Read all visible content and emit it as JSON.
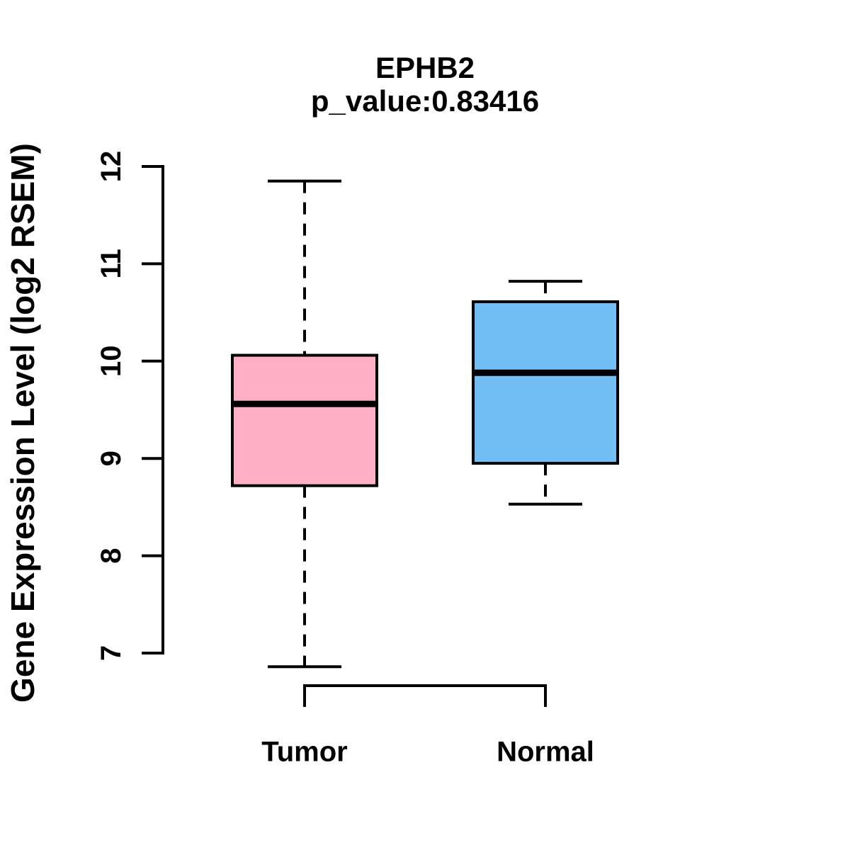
{
  "chart_data": {
    "type": "boxplot",
    "title": "EPHB2",
    "subtitle": "p_value:0.83416",
    "ylabel": "Gene Expression Level (log2 RSEM)",
    "xlabel": "",
    "categories": [
      "Tumor",
      "Normal"
    ],
    "yticks": [
      7,
      8,
      9,
      10,
      11,
      12
    ],
    "ylim": [
      6.5,
      12.3
    ],
    "grid": false,
    "legend": "none",
    "whisker_style": "dashed",
    "box_border_color": "#000000",
    "median_color": "#000000",
    "axis_color": "#000000",
    "series": [
      {
        "name": "Tumor",
        "color": "#FFB0C4",
        "min": 6.86,
        "q1": 8.72,
        "median": 9.56,
        "q3": 10.06,
        "max": 11.85
      },
      {
        "name": "Normal",
        "color": "#74BEF6",
        "min": 8.53,
        "q1": 8.95,
        "median": 9.88,
        "q3": 10.61,
        "max": 10.82
      }
    ]
  }
}
